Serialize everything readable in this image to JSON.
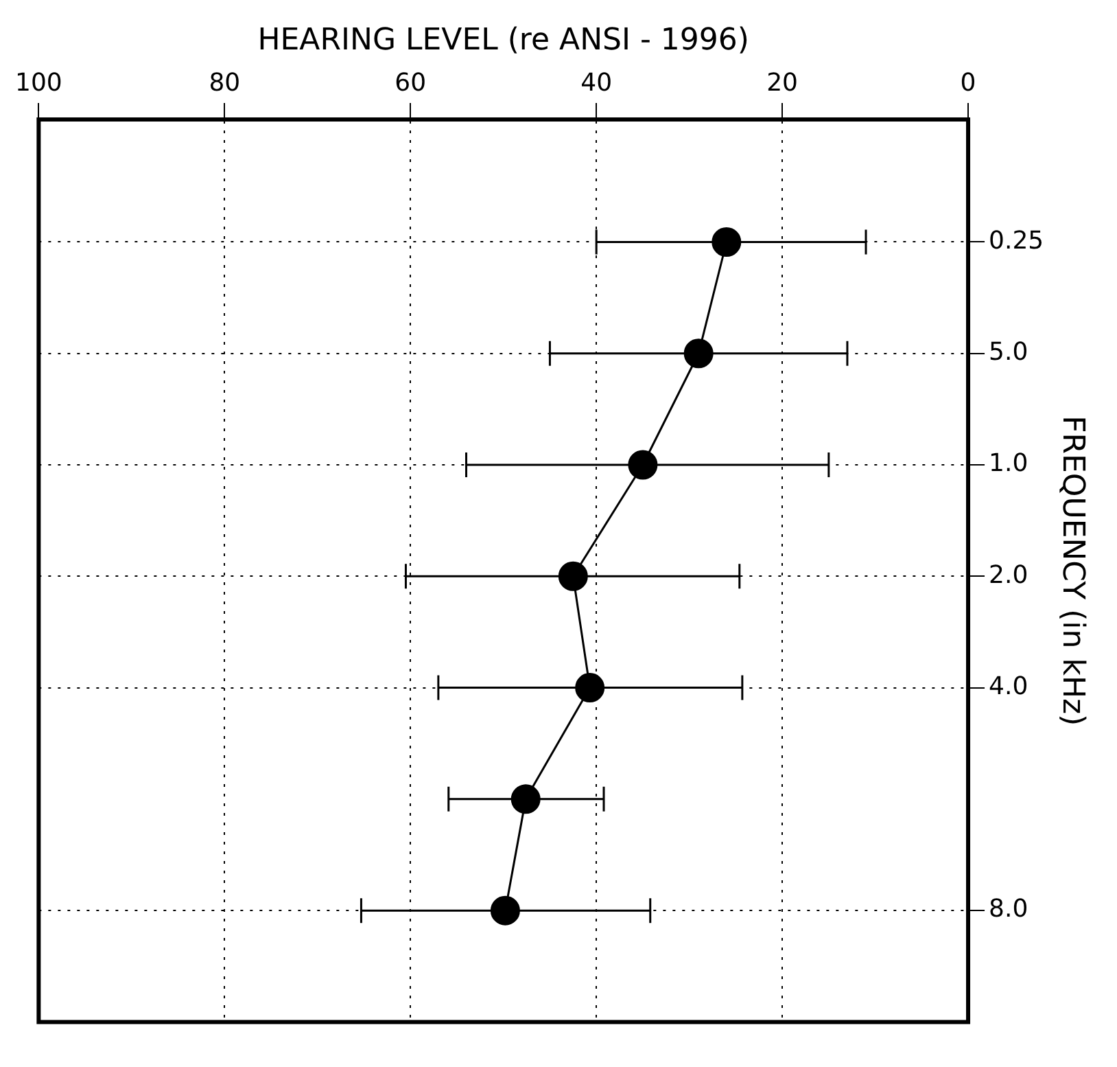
{
  "chart_data": {
    "type": "line",
    "orientation": "horizontal",
    "xlabel": "HEARING LEVEL (re ANSI - 1996)",
    "ylabel": "FREQUENCY (in kHz)",
    "categories": [
      "0.25",
      null,
      "5.0",
      null,
      "1.0",
      null,
      "2.0",
      null,
      "4.0",
      null,
      null,
      null,
      "8.0"
    ],
    "series": [
      {
        "color": "#000000",
        "values": [
          26,
          null,
          29,
          null,
          35,
          null,
          42.5,
          null,
          40.7,
          null,
          47.6,
          null,
          49.8
        ],
        "errors": [
          [
            40,
            11
          ],
          null,
          [
            45,
            13
          ],
          null,
          [
            54,
            15
          ],
          null,
          [
            60.5,
            24.6
          ],
          null,
          [
            57,
            24.3
          ],
          null,
          [
            55.9,
            39.2
          ],
          null,
          [
            65.3,
            34.2
          ]
        ]
      }
    ],
    "xlim": [
      100,
      0
    ],
    "xticks": [
      100,
      80,
      60,
      40,
      20,
      0
    ],
    "grid": true,
    "marker": "circle",
    "line_style": "solid",
    "legend": false
  }
}
